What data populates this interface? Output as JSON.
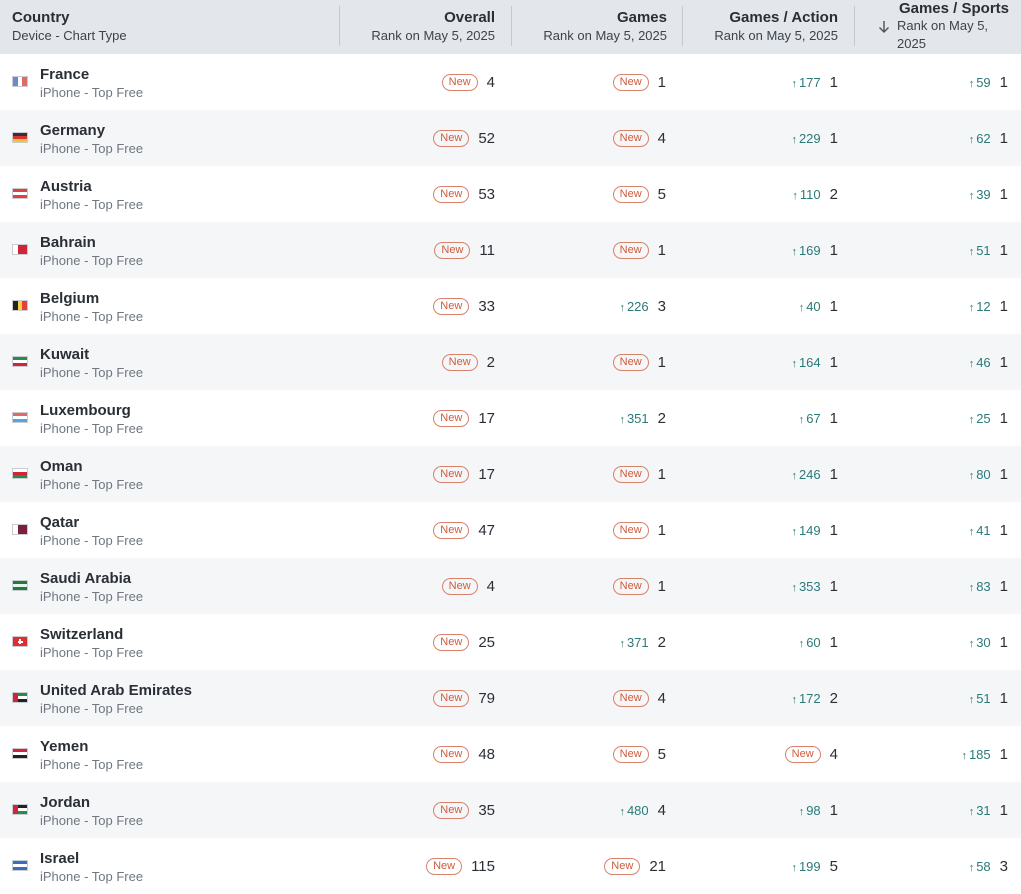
{
  "columns": {
    "country": {
      "title": "Country",
      "sub": "Device - Chart Type"
    },
    "overall": {
      "title": "Overall",
      "sub": "Rank on May 5, 2025"
    },
    "games": {
      "title": "Games",
      "sub": "Rank on May 5, 2025"
    },
    "action": {
      "title": "Games / Action",
      "sub": "Rank on May 5, 2025"
    },
    "sports": {
      "title": "Games / Sports",
      "sub_line1": "Rank on May 5,",
      "sub_line2": "2025",
      "sort_icon": "arrow-down-icon"
    }
  },
  "new_label": "New",
  "rows": [
    {
      "country": "France",
      "type": "iPhone - Top Free",
      "flag": {
        "dir": "v",
        "colors": [
          "#6f8ac6",
          "#ffffff",
          "#e06a6a"
        ]
      },
      "overall": {
        "new": true,
        "rank": "4"
      },
      "games": {
        "new": true,
        "rank": "1"
      },
      "action": {
        "new": false,
        "change": "177",
        "rank": "1"
      },
      "sports": {
        "new": false,
        "change": "59",
        "rank": "1"
      }
    },
    {
      "country": "Germany",
      "type": "iPhone - Top Free",
      "flag": {
        "dir": "h",
        "colors": [
          "#333333",
          "#dd3333",
          "#f4c430"
        ]
      },
      "overall": {
        "new": true,
        "rank": "52"
      },
      "games": {
        "new": true,
        "rank": "4"
      },
      "action": {
        "new": false,
        "change": "229",
        "rank": "1"
      },
      "sports": {
        "new": false,
        "change": "62",
        "rank": "1"
      }
    },
    {
      "country": "Austria",
      "type": "iPhone - Top Free",
      "flag": {
        "dir": "h",
        "colors": [
          "#e04040",
          "#ffffff",
          "#e04040"
        ]
      },
      "overall": {
        "new": true,
        "rank": "53"
      },
      "games": {
        "new": true,
        "rank": "5"
      },
      "action": {
        "new": false,
        "change": "110",
        "rank": "2"
      },
      "sports": {
        "new": false,
        "change": "39",
        "rank": "1"
      }
    },
    {
      "country": "Bahrain",
      "type": "iPhone - Top Free",
      "flag": {
        "dir": "v",
        "colors": [
          "#ffffff",
          "#d0243a",
          "#d0243a"
        ]
      },
      "overall": {
        "new": true,
        "rank": "11"
      },
      "games": {
        "new": true,
        "rank": "1"
      },
      "action": {
        "new": false,
        "change": "169",
        "rank": "1"
      },
      "sports": {
        "new": false,
        "change": "51",
        "rank": "1"
      }
    },
    {
      "country": "Belgium",
      "type": "iPhone - Top Free",
      "flag": {
        "dir": "v",
        "colors": [
          "#222222",
          "#f4d03f",
          "#e04040"
        ]
      },
      "overall": {
        "new": true,
        "rank": "33"
      },
      "games": {
        "new": false,
        "change": "226",
        "rank": "3"
      },
      "action": {
        "new": false,
        "change": "40",
        "rank": "1"
      },
      "sports": {
        "new": false,
        "change": "12",
        "rank": "1"
      }
    },
    {
      "country": "Kuwait",
      "type": "iPhone - Top Free",
      "flag": {
        "dir": "h",
        "colors": [
          "#2a8a4a",
          "#ffffff",
          "#d0243a"
        ]
      },
      "overall": {
        "new": true,
        "rank": "2"
      },
      "games": {
        "new": true,
        "rank": "1"
      },
      "action": {
        "new": false,
        "change": "164",
        "rank": "1"
      },
      "sports": {
        "new": false,
        "change": "46",
        "rank": "1"
      }
    },
    {
      "country": "Luxembourg",
      "type": "iPhone - Top Free",
      "flag": {
        "dir": "h",
        "colors": [
          "#e06a6a",
          "#ffffff",
          "#55a6dd"
        ]
      },
      "overall": {
        "new": true,
        "rank": "17"
      },
      "games": {
        "new": false,
        "change": "351",
        "rank": "2"
      },
      "action": {
        "new": false,
        "change": "67",
        "rank": "1"
      },
      "sports": {
        "new": false,
        "change": "25",
        "rank": "1"
      }
    },
    {
      "country": "Oman",
      "type": "iPhone - Top Free",
      "flag": {
        "dir": "h",
        "colors": [
          "#ffffff",
          "#d0243a",
          "#2a8a4a"
        ]
      },
      "overall": {
        "new": true,
        "rank": "17"
      },
      "games": {
        "new": true,
        "rank": "1"
      },
      "action": {
        "new": false,
        "change": "246",
        "rank": "1"
      },
      "sports": {
        "new": false,
        "change": "80",
        "rank": "1"
      }
    },
    {
      "country": "Qatar",
      "type": "iPhone - Top Free",
      "flag": {
        "dir": "v",
        "colors": [
          "#ffffff",
          "#7a1f3d",
          "#7a1f3d"
        ]
      },
      "overall": {
        "new": true,
        "rank": "47"
      },
      "games": {
        "new": true,
        "rank": "1"
      },
      "action": {
        "new": false,
        "change": "149",
        "rank": "1"
      },
      "sports": {
        "new": false,
        "change": "41",
        "rank": "1"
      }
    },
    {
      "country": "Saudi Arabia",
      "type": "iPhone - Top Free",
      "flag": {
        "dir": "h",
        "colors": [
          "#1f7a3f",
          "#e8f3ea",
          "#1f7a3f"
        ]
      },
      "overall": {
        "new": true,
        "rank": "4"
      },
      "games": {
        "new": true,
        "rank": "1"
      },
      "action": {
        "new": false,
        "change": "353",
        "rank": "1"
      },
      "sports": {
        "new": false,
        "change": "83",
        "rank": "1"
      }
    },
    {
      "country": "Switzerland",
      "type": "iPhone - Top Free",
      "flag": {
        "dir": "h",
        "colors": [
          "#e02e2e",
          "#e02e2e",
          "#e02e2e"
        ],
        "cross": true
      },
      "overall": {
        "new": true,
        "rank": "25"
      },
      "games": {
        "new": false,
        "change": "371",
        "rank": "2"
      },
      "action": {
        "new": false,
        "change": "60",
        "rank": "1"
      },
      "sports": {
        "new": false,
        "change": "30",
        "rank": "1"
      }
    },
    {
      "country": "United Arab Emirates",
      "type": "iPhone - Top Free",
      "flag": {
        "dir": "h",
        "colors": [
          "#2a8a4a",
          "#ffffff",
          "#222222"
        ],
        "hoist": "#d0243a"
      },
      "overall": {
        "new": true,
        "rank": "79"
      },
      "games": {
        "new": true,
        "rank": "4"
      },
      "action": {
        "new": false,
        "change": "172",
        "rank": "2"
      },
      "sports": {
        "new": false,
        "change": "51",
        "rank": "1"
      }
    },
    {
      "country": "Yemen",
      "type": "iPhone - Top Free",
      "flag": {
        "dir": "h",
        "colors": [
          "#d0243a",
          "#ffffff",
          "#222222"
        ]
      },
      "overall": {
        "new": true,
        "rank": "48"
      },
      "games": {
        "new": true,
        "rank": "5"
      },
      "action": {
        "new": true,
        "rank": "4"
      },
      "sports": {
        "new": false,
        "change": "185",
        "rank": "1"
      }
    },
    {
      "country": "Jordan",
      "type": "iPhone - Top Free",
      "flag": {
        "dir": "h",
        "colors": [
          "#222222",
          "#ffffff",
          "#2a8a4a"
        ],
        "hoist": "#d0243a"
      },
      "overall": {
        "new": true,
        "rank": "35"
      },
      "games": {
        "new": false,
        "change": "480",
        "rank": "4"
      },
      "action": {
        "new": false,
        "change": "98",
        "rank": "1"
      },
      "sports": {
        "new": false,
        "change": "31",
        "rank": "1"
      }
    },
    {
      "country": "Israel",
      "type": "iPhone - Top Free",
      "flag": {
        "dir": "h",
        "colors": [
          "#3a6fc0",
          "#ffffff",
          "#3a6fc0"
        ]
      },
      "overall": {
        "new": true,
        "rank": "115"
      },
      "games": {
        "new": true,
        "rank": "21"
      },
      "action": {
        "new": false,
        "change": "199",
        "rank": "5"
      },
      "sports": {
        "new": false,
        "change": "58",
        "rank": "3"
      }
    }
  ]
}
